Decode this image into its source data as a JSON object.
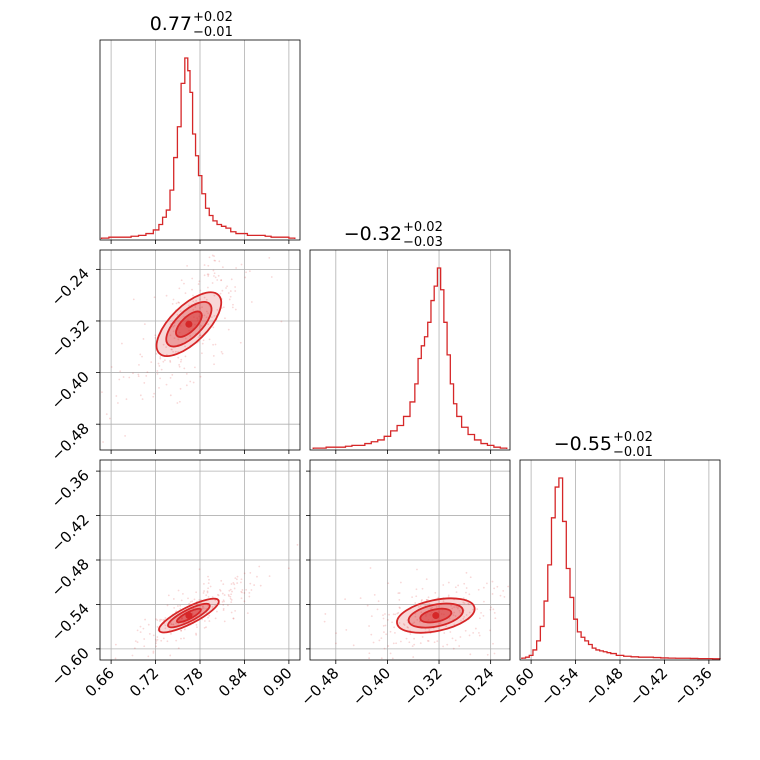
{
  "chart_data": {
    "type": "corner",
    "color": "#d62728",
    "grid": true,
    "parameters": [
      {
        "range": [
          0.645,
          0.915
        ],
        "ticks": [
          0.66,
          0.72,
          0.78,
          0.84,
          0.9
        ],
        "tick_labels": [
          "0.66",
          "0.72",
          "0.78",
          "0.84",
          "0.90"
        ]
      },
      {
        "range": [
          -0.52,
          -0.21
        ],
        "ticks": [
          -0.48,
          -0.4,
          -0.32,
          -0.24
        ],
        "tick_labels": [
          "−0.48",
          "−0.40",
          "−0.32",
          "−0.24"
        ]
      },
      {
        "range": [
          -0.615,
          -0.345
        ],
        "ticks": [
          -0.6,
          -0.54,
          -0.48,
          -0.42,
          -0.36
        ],
        "tick_labels": [
          "−0.60",
          "−0.54",
          "−0.48",
          "−0.42",
          "−0.36"
        ]
      }
    ],
    "titles": [
      {
        "main": "0.77",
        "plus": "+0.02",
        "minus": "−0.01"
      },
      {
        "main": "−0.32",
        "plus": "+0.02",
        "minus": "−0.03"
      },
      {
        "main": "−0.55",
        "plus": "+0.02",
        "minus": "−0.01"
      }
    ],
    "histograms": [
      {
        "bin_centers": [
          0.652,
          0.662,
          0.672,
          0.682,
          0.692,
          0.702,
          0.712,
          0.722,
          0.727,
          0.732,
          0.737,
          0.742,
          0.747,
          0.752,
          0.757,
          0.762,
          0.765,
          0.768,
          0.772,
          0.776,
          0.78,
          0.785,
          0.79,
          0.795,
          0.8,
          0.806,
          0.812,
          0.818,
          0.825,
          0.832,
          0.84,
          0.848,
          0.856,
          0.864,
          0.872,
          0.88,
          0.888,
          0.896,
          0.904
        ],
        "counts": [
          0.005,
          0.01,
          0.01,
          0.01,
          0.015,
          0.02,
          0.03,
          0.05,
          0.08,
          0.12,
          0.16,
          0.27,
          0.45,
          0.62,
          0.86,
          1.0,
          0.93,
          0.81,
          0.58,
          0.46,
          0.35,
          0.25,
          0.17,
          0.13,
          0.1,
          0.08,
          0.07,
          0.06,
          0.04,
          0.03,
          0.03,
          0.02,
          0.02,
          0.02,
          0.015,
          0.01,
          0.01,
          0.01,
          0.005
        ]
      },
      {
        "bin_centers": [
          -0.51,
          -0.5,
          -0.49,
          -0.48,
          -0.47,
          -0.46,
          -0.45,
          -0.44,
          -0.43,
          -0.42,
          -0.41,
          -0.4,
          -0.39,
          -0.38,
          -0.37,
          -0.36,
          -0.355,
          -0.35,
          -0.345,
          -0.34,
          -0.335,
          -0.33,
          -0.325,
          -0.32,
          -0.315,
          -0.31,
          -0.305,
          -0.3,
          -0.295,
          -0.29,
          -0.28,
          -0.27,
          -0.26,
          -0.25,
          -0.24,
          -0.23,
          -0.22
        ],
        "counts": [
          0.005,
          0.005,
          0.01,
          0.01,
          0.01,
          0.015,
          0.02,
          0.02,
          0.03,
          0.04,
          0.05,
          0.07,
          0.1,
          0.13,
          0.18,
          0.26,
          0.36,
          0.5,
          0.57,
          0.62,
          0.7,
          0.82,
          0.9,
          1.0,
          0.88,
          0.7,
          0.52,
          0.36,
          0.25,
          0.18,
          0.12,
          0.08,
          0.05,
          0.03,
          0.02,
          0.01,
          0.005
        ]
      },
      {
        "bin_centers": [
          -0.61,
          -0.605,
          -0.6,
          -0.595,
          -0.59,
          -0.585,
          -0.58,
          -0.575,
          -0.57,
          -0.565,
          -0.56,
          -0.555,
          -0.55,
          -0.545,
          -0.54,
          -0.535,
          -0.53,
          -0.525,
          -0.52,
          -0.515,
          -0.51,
          -0.505,
          -0.5,
          -0.495,
          -0.49,
          -0.48,
          -0.47,
          -0.46,
          -0.45,
          -0.44,
          -0.43,
          -0.42,
          -0.41,
          -0.4,
          -0.39,
          -0.38,
          -0.37,
          -0.36,
          -0.35
        ],
        "counts": [
          0.005,
          0.01,
          0.02,
          0.05,
          0.1,
          0.18,
          0.32,
          0.52,
          0.78,
          0.95,
          1.0,
          0.76,
          0.5,
          0.34,
          0.22,
          0.15,
          0.12,
          0.1,
          0.08,
          0.06,
          0.05,
          0.045,
          0.04,
          0.035,
          0.03,
          0.02,
          0.015,
          0.012,
          0.01,
          0.01,
          0.008,
          0.006,
          0.005,
          0.004,
          0.004,
          0.003,
          0.002,
          0.002,
          0.001
        ]
      }
    ],
    "joint_modes": [
      {
        "x_param": 0,
        "y_param": 1,
        "x": 0.765,
        "y": -0.325,
        "corr": 0.75,
        "sx": 0.02,
        "sy": 0.03
      },
      {
        "x_param": 0,
        "y_param": 2,
        "x": 0.765,
        "y": -0.555,
        "corr": 0.85,
        "sx": 0.02,
        "sy": 0.012
      },
      {
        "x_param": 1,
        "y_param": 2,
        "x": -0.325,
        "y": -0.555,
        "corr": 0.45,
        "sx": 0.03,
        "sy": 0.012
      }
    ]
  }
}
